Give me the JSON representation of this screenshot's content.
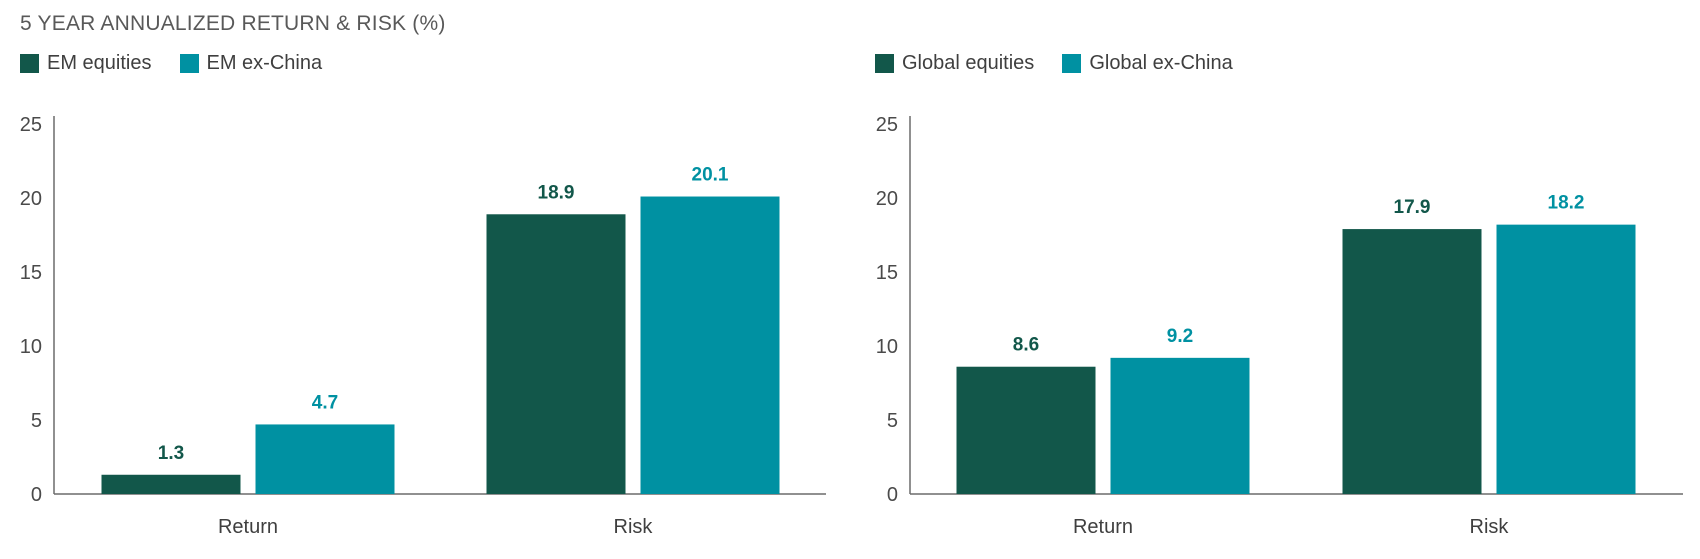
{
  "title": "5 YEAR ANNUALIZED RETURN & RISK (%)",
  "colors": {
    "primary": "#12574a",
    "secondary": "#0091a2",
    "axis": "#6b6b6b"
  },
  "chart_data": [
    {
      "type": "bar",
      "title": "5 YEAR ANNUALIZED RETURN & RISK (%)",
      "categories": [
        "Return",
        "Risk"
      ],
      "series": [
        {
          "name": "EM equities",
          "values": [
            1.3,
            18.9
          ],
          "color": "#12574a"
        },
        {
          "name": "EM ex-China",
          "values": [
            4.7,
            20.1
          ],
          "color": "#0091a2"
        }
      ],
      "ylim": [
        0,
        25
      ],
      "yticks": [
        "0",
        "5",
        "10",
        "15",
        "20",
        "25"
      ],
      "grid": false,
      "legend": "top-left"
    },
    {
      "type": "bar",
      "categories": [
        "Return",
        "Risk"
      ],
      "series": [
        {
          "name": "Global equities",
          "values": [
            8.6,
            17.9
          ],
          "color": "#12574a"
        },
        {
          "name": "Global ex-China",
          "values": [
            9.2,
            18.2
          ],
          "color": "#0091a2"
        }
      ],
      "ylim": [
        0,
        25
      ],
      "yticks": [
        "0",
        "5",
        "10",
        "15",
        "20",
        "25"
      ],
      "grid": false,
      "legend": "top-left"
    }
  ]
}
